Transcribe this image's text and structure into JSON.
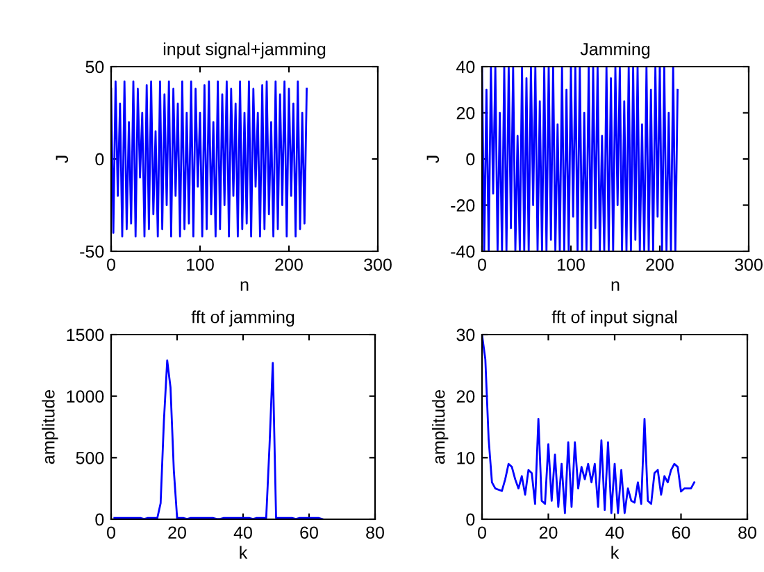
{
  "chart_data": [
    {
      "type": "line",
      "title": "input signal+jamming",
      "xlabel": "n",
      "ylabel": "J",
      "xlim": [
        0,
        300
      ],
      "ylim": [
        -50,
        50
      ],
      "xticks": [
        0,
        100,
        200,
        300
      ],
      "yticks": [
        -50,
        0,
        50
      ],
      "grid": false,
      "marker": "none",
      "line_style": "solid",
      "series": [
        {
          "color": "#0000ff",
          "x": [
            0,
            2.5,
            5,
            7.5,
            10,
            12.5,
            15,
            17.5,
            20,
            22.5,
            25,
            27.5,
            30,
            32.5,
            35,
            37.5,
            40,
            42.5,
            45,
            47.5,
            50,
            52.5,
            55,
            57.5,
            60,
            62.5,
            65,
            67.5,
            70,
            72.5,
            75,
            77.5,
            80,
            82.5,
            85,
            87.5,
            90,
            92.5,
            95,
            97.5,
            100,
            102.5,
            105,
            107.5,
            110,
            112.5,
            115,
            117.5,
            120,
            122.5,
            125,
            127.5,
            130,
            132.5,
            135,
            137.5,
            140,
            142.5,
            145,
            147.5,
            150,
            152.5,
            155,
            157.5,
            160,
            162.5,
            165,
            167.5,
            170,
            172.5,
            175,
            177.5,
            180,
            182.5,
            185,
            187.5,
            190,
            192.5,
            195,
            197.5,
            200,
            202.5,
            205,
            207.5,
            210,
            212.5,
            215,
            217.5,
            220
          ],
          "values": [
            38,
            -40,
            42,
            -20,
            30,
            -42,
            42,
            -38,
            20,
            -35,
            42,
            -42,
            38,
            -10,
            25,
            -42,
            40,
            -38,
            42,
            -30,
            15,
            -42,
            42,
            -38,
            35,
            -25,
            42,
            -42,
            38,
            -20,
            30,
            -42,
            42,
            -38,
            25,
            -35,
            42,
            -42,
            38,
            -15,
            25,
            -42,
            40,
            -38,
            42,
            -30,
            20,
            -42,
            42,
            -38,
            35,
            -25,
            42,
            -42,
            38,
            -20,
            30,
            -42,
            42,
            -38,
            25,
            -35,
            42,
            -42,
            38,
            -15,
            25,
            -42,
            40,
            -38,
            42,
            -30,
            20,
            -42,
            42,
            -38,
            35,
            -25,
            42,
            -42,
            38,
            -20,
            30,
            -42,
            42,
            -38,
            25,
            -35,
            38
          ]
        }
      ]
    },
    {
      "type": "line",
      "title": "Jamming",
      "xlabel": "n",
      "ylabel": "J",
      "xlim": [
        0,
        300
      ],
      "ylim": [
        -40,
        40
      ],
      "xticks": [
        0,
        100,
        200,
        300
      ],
      "yticks": [
        -40,
        -20,
        0,
        20,
        40
      ],
      "grid": false,
      "marker": "none",
      "line_style": "solid",
      "series": [
        {
          "color": "#0000ff",
          "x": [
            0,
            2.5,
            5,
            7.5,
            10,
            12.5,
            15,
            17.5,
            20,
            22.5,
            25,
            27.5,
            30,
            32.5,
            35,
            37.5,
            40,
            42.5,
            45,
            47.5,
            50,
            52.5,
            55,
            57.5,
            60,
            62.5,
            65,
            67.5,
            70,
            72.5,
            75,
            77.5,
            80,
            82.5,
            85,
            87.5,
            90,
            92.5,
            95,
            97.5,
            100,
            102.5,
            105,
            107.5,
            110,
            112.5,
            115,
            117.5,
            120,
            122.5,
            125,
            127.5,
            130,
            132.5,
            135,
            137.5,
            140,
            142.5,
            145,
            147.5,
            150,
            152.5,
            155,
            157.5,
            160,
            162.5,
            165,
            167.5,
            170,
            172.5,
            175,
            177.5,
            180,
            182.5,
            185,
            187.5,
            190,
            192.5,
            195,
            197.5,
            200,
            202.5,
            205,
            207.5,
            210,
            212.5,
            215,
            217.5,
            220
          ],
          "values": [
            40,
            -40,
            30,
            -40,
            40,
            -15,
            40,
            -40,
            20,
            -40,
            40,
            -40,
            40,
            -30,
            40,
            -40,
            10,
            -40,
            40,
            -40,
            35,
            -40,
            40,
            -20,
            40,
            -40,
            25,
            -40,
            40,
            -40,
            40,
            -35,
            40,
            -40,
            15,
            -40,
            40,
            -40,
            30,
            -40,
            40,
            -25,
            40,
            -40,
            40,
            -40,
            20,
            -40,
            40,
            -40,
            40,
            -30,
            40,
            -40,
            10,
            -40,
            40,
            -40,
            35,
            -40,
            40,
            -20,
            40,
            -40,
            25,
            -40,
            40,
            -40,
            40,
            -35,
            40,
            -40,
            15,
            -40,
            40,
            -40,
            30,
            -40,
            40,
            -25,
            40,
            -40,
            40,
            -40,
            20,
            -40,
            40,
            -40,
            30
          ]
        }
      ]
    },
    {
      "type": "line",
      "title": "fft of jamming",
      "xlabel": "k",
      "ylabel": "amplitude",
      "xlim": [
        0,
        80
      ],
      "ylim": [
        0,
        1500
      ],
      "xticks": [
        0,
        20,
        40,
        60,
        80
      ],
      "yticks": [
        0,
        500,
        1000,
        1500
      ],
      "grid": false,
      "marker": "none",
      "line_style": "solid",
      "series": [
        {
          "color": "#0000ff",
          "x": [
            1,
            2,
            3,
            4,
            5,
            6,
            7,
            8,
            9,
            10,
            11,
            12,
            13,
            14,
            15,
            16,
            17,
            18,
            19,
            20,
            21,
            22,
            23,
            24,
            25,
            26,
            27,
            28,
            29,
            30,
            31,
            32,
            33,
            34,
            35,
            36,
            37,
            38,
            39,
            40,
            41,
            42,
            43,
            44,
            45,
            46,
            47,
            48,
            49,
            50,
            51,
            52,
            53,
            54,
            55,
            56,
            57,
            58,
            59,
            60,
            61,
            62,
            63,
            64
          ],
          "values": [
            10,
            10,
            10,
            10,
            10,
            10,
            10,
            10,
            10,
            2,
            10,
            10,
            10,
            10,
            130,
            800,
            1290,
            1070,
            400,
            10,
            10,
            10,
            2,
            10,
            10,
            10,
            10,
            10,
            10,
            10,
            10,
            2,
            2,
            10,
            10,
            10,
            10,
            10,
            10,
            10,
            10,
            10,
            2,
            10,
            10,
            10,
            10,
            590,
            1270,
            10,
            10,
            10,
            10,
            10,
            10,
            2,
            10,
            10,
            10,
            10,
            10,
            10,
            10,
            2
          ]
        }
      ]
    },
    {
      "type": "line",
      "title": "fft of input signal",
      "xlabel": "k",
      "ylabel": "amplitude",
      "xlim": [
        0,
        80
      ],
      "ylim": [
        0,
        30
      ],
      "xticks": [
        0,
        20,
        40,
        60,
        80
      ],
      "yticks": [
        0,
        10,
        20,
        30
      ],
      "grid": false,
      "marker": "none",
      "line_style": "solid",
      "series": [
        {
          "color": "#0000ff",
          "x": [
            0,
            1,
            2,
            3,
            4,
            5,
            6,
            7,
            8,
            9,
            10,
            11,
            12,
            13,
            14,
            15,
            16,
            17,
            18,
            19,
            20,
            21,
            22,
            23,
            24,
            25,
            26,
            27,
            28,
            29,
            30,
            31,
            32,
            33,
            34,
            35,
            36,
            37,
            38,
            39,
            40,
            41,
            42,
            43,
            44,
            45,
            46,
            47,
            48,
            49,
            50,
            51,
            52,
            53,
            54,
            55,
            56,
            57,
            58,
            59,
            60,
            61,
            62,
            63,
            64
          ],
          "values": [
            30,
            26,
            13,
            6,
            5,
            4.8,
            4.6,
            6.5,
            9,
            8.5,
            6.5,
            5,
            7,
            4,
            8,
            7.5,
            2.5,
            16.3,
            3,
            2.5,
            12.2,
            3,
            10.5,
            2,
            9,
            1,
            12.5,
            2,
            12.5,
            5,
            8.5,
            6.5,
            9,
            6,
            9,
            2,
            12.8,
            1.5,
            12.5,
            1,
            9,
            1,
            8,
            1,
            5,
            3,
            2.7,
            6,
            2.5,
            16.3,
            3,
            2.5,
            7.5,
            8,
            4,
            7,
            6,
            8,
            9,
            8.5,
            4.5,
            5,
            5,
            5,
            6
          ]
        }
      ]
    }
  ]
}
